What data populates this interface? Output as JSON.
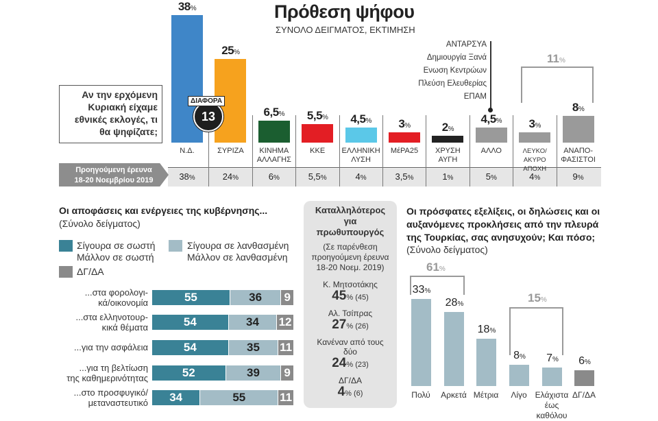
{
  "header": {
    "title": "Πρόθεση ψήφου",
    "subtitle": "ΣΥΝΟΛΟ ΔΕΙΓΜΑΤΟΣ, ΕΚΤΙΜΗΣΗ"
  },
  "question": "Αν την ερχόμενη Κυριακή είχαμε εθνικές εκλογές, τι θα ψηφίζατε;",
  "difference": {
    "label": "ΔΙΑΦΟΡΑ",
    "value": "13"
  },
  "previous_label_1": "Προηγούμενη έρευνα",
  "previous_label_2": "18-20 Νοεμβρίου 2019",
  "other_parties": [
    "ΑΝΤΑΡΣΥΑ",
    "Δημιουργία Ξανά",
    "Ενωση Κεντρώων",
    "Πλεύση Ελευθερίας",
    "ΕΠΑΜ"
  ],
  "bracket_undecided": "11",
  "chart_data": [
    {
      "type": "bar",
      "title": "Πρόθεση ψήφου",
      "categories": [
        "Ν.Δ.",
        "ΣΥΡΙΖΑ",
        "ΚΙΝΗΜΑ ΑΛΛΑΓΗΣ",
        "ΚΚΕ",
        "ΕΛΛΗΝΙΚΗ ΛΥΣΗ",
        "ΜέΡΑ25",
        "ΧΡΥΣΗ ΑΥΓΗ",
        "ΑΛΛΟ",
        "ΛΕΥΚΟ/ΑΚΥΡΟ ΑΠΟΧΗ",
        "ΑΝΑΠΟ-ΦΑΣΙΣΤΟΙ"
      ],
      "values": [
        38,
        25,
        6.5,
        5.5,
        4.5,
        3,
        2,
        4.5,
        3,
        8
      ],
      "value_labels": [
        "38",
        "25",
        "6,5",
        "5,5",
        "4,5",
        "3",
        "2",
        "4,5",
        "3",
        "8"
      ],
      "previous": [
        "38",
        "24",
        "6",
        "5,5",
        "4",
        "3,5",
        "1",
        "5",
        "4",
        "9"
      ],
      "colors": [
        "#3f86c8",
        "#f6a21e",
        "#1b5e30",
        "#e31e24",
        "#5bc8e8",
        "#e31e24",
        "#222222",
        "#9a9a9a",
        "#9a9a9a",
        "#9a9a9a"
      ],
      "unit": "%"
    },
    {
      "type": "bar",
      "stacked": true,
      "orientation": "horizontal",
      "title": "Οι αποφάσεις και ενέργειες της κυβέρνησης...",
      "subtitle": "(Σύνολο δείγματος)",
      "legend": [
        "Σίγουρα σε σωστή Μάλλον σε σωστή",
        "Σίγουρα σε λανθασμένη Μάλλον σε λανθασμένη",
        "ΔΓ/ΔΑ"
      ],
      "legend_1a": "Σίγουρα σε σωστή",
      "legend_1b": "Μάλλον σε σωστή",
      "legend_2a": "Σίγουρα σε λανθασμένη",
      "legend_2b": "Μάλλον σε λανθασμένη",
      "legend_3": "ΔΓ/ΔΑ",
      "colors": [
        "#3a8296",
        "#a3bcc6",
        "#8a8a8a"
      ],
      "categories": [
        "...στα φορολογι-|κά/οικονομία",
        "...στα ελληνοτουρ-|κικά θέματα",
        "...για την ασφάλεια",
        "...για τη βελτίωση|της καθημερινότητας",
        "...στο προσφυγικό/|μεταναστευτικό"
      ],
      "series": [
        {
          "values": [
            55,
            54,
            54,
            52,
            34
          ]
        },
        {
          "values": [
            36,
            34,
            35,
            39,
            55
          ]
        },
        {
          "values": [
            9,
            12,
            11,
            9,
            11
          ]
        }
      ]
    },
    {
      "type": "table",
      "title": "Καταλληλότερος για πρωθυπουργός",
      "note": "(Σε παρένθεση προηγούμενη έρευνα 18-20 Νοεμ. 2019)",
      "rows": [
        {
          "name": "Κ. Μητσοτάκης",
          "value": "45",
          "prev": "(45)"
        },
        {
          "name": "Αλ. Τσίπρας",
          "value": "27",
          "prev": "(26)"
        },
        {
          "name": "Κανέναν από τους δύο",
          "value": "24",
          "prev": "(23)"
        },
        {
          "name": "ΔΓ/ΔΑ",
          "value": "4",
          "prev": "(6)"
        }
      ]
    },
    {
      "type": "bar",
      "title": "Οι πρόσφατες εξελίξεις, οι δηλώσεις και οι αυξανόμενες προκλήσεις από την πλευρά της Τουρκίας, σας ανησυχούν; Και πόσο;",
      "subtitle": "(Σύνολο δείγματος)",
      "categories": [
        "Πολύ",
        "Αρκετά",
        "Μέτρια",
        "Λίγο",
        "Ελάχιστα|έως καθόλου",
        "ΔΓ/ΔΑ"
      ],
      "values": [
        33,
        28,
        18,
        8,
        7,
        6
      ],
      "colors": [
        "#a3bcc6",
        "#a3bcc6",
        "#a3bcc6",
        "#a3bcc6",
        "#a3bcc6",
        "#8a8a8a"
      ],
      "groups": [
        {
          "label": "61",
          "members": [
            "Πολύ",
            "Αρκετά"
          ]
        },
        {
          "label": "15",
          "members": [
            "Λίγο",
            "Ελάχιστα έως καθόλου"
          ]
        }
      ],
      "unit": "%"
    }
  ]
}
